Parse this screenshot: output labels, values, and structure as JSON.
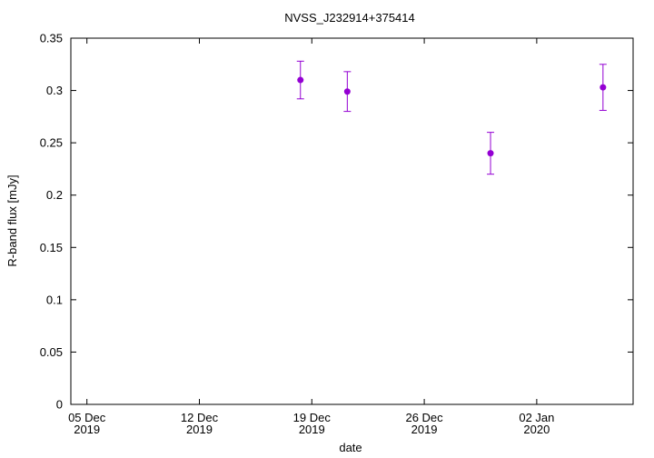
{
  "chart_data": {
    "type": "scatter",
    "title": "NVSS_J232914+375414",
    "xlabel": "date",
    "ylabel": "R-band flux [mJy]",
    "xlim": [
      "2019-12-04",
      "2020-01-08"
    ],
    "ylim": [
      0,
      0.35
    ],
    "grid": false,
    "legend": "none",
    "marker_color": "#9400d3",
    "x_ticks": [
      {
        "date": "2019-12-05",
        "line1": "05 Dec",
        "line2": "2019"
      },
      {
        "date": "2019-12-12",
        "line1": "12 Dec",
        "line2": "2019"
      },
      {
        "date": "2019-12-19",
        "line1": "19 Dec",
        "line2": "2019"
      },
      {
        "date": "2019-12-26",
        "line1": "26 Dec",
        "line2": "2019"
      },
      {
        "date": "2020-01-02",
        "line1": "02 Jan",
        "line2": "2020"
      }
    ],
    "y_ticks": [
      {
        "value": 0,
        "label": "0"
      },
      {
        "value": 0.05,
        "label": "0.05"
      },
      {
        "value": 0.1,
        "label": "0.1"
      },
      {
        "value": 0.15,
        "label": "0.15"
      },
      {
        "value": 0.2,
        "label": "0.2"
      },
      {
        "value": 0.25,
        "label": "0.25"
      },
      {
        "value": 0.3,
        "label": "0.3"
      },
      {
        "value": 0.35,
        "label": "0.35"
      }
    ],
    "points": [
      {
        "x": "2019-12-18T07:00",
        "y": 0.31,
        "ylow": 0.292,
        "yhigh": 0.328
      },
      {
        "x": "2019-12-21T05:00",
        "y": 0.299,
        "ylow": 0.28,
        "yhigh": 0.318
      },
      {
        "x": "2019-12-30T03:00",
        "y": 0.24,
        "ylow": 0.22,
        "yhigh": 0.26
      },
      {
        "x": "2020-01-06T03:00",
        "y": 0.303,
        "ylow": 0.281,
        "yhigh": 0.325
      }
    ]
  }
}
